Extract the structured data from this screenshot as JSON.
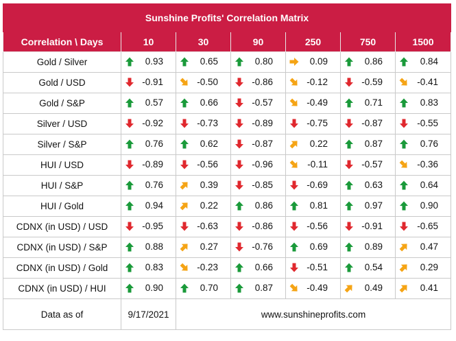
{
  "title": "Sunshine Profits' Correlation Matrix",
  "header_label": "Correlation \\ Days",
  "days": [
    "10",
    "30",
    "90",
    "250",
    "750",
    "1500"
  ],
  "colors": {
    "up": "#1a9a3a",
    "down": "#e0282e",
    "sideways": "#f5a415",
    "header_bg": "#cb1d44"
  },
  "rows": [
    {
      "label": "Gold / Silver",
      "cells": [
        {
          "v": "0.93",
          "d": "up"
        },
        {
          "v": "0.65",
          "d": "up"
        },
        {
          "v": "0.80",
          "d": "up"
        },
        {
          "v": "0.09",
          "d": "right"
        },
        {
          "v": "0.86",
          "d": "up"
        },
        {
          "v": "0.84",
          "d": "up"
        }
      ]
    },
    {
      "label": "Gold / USD",
      "cells": [
        {
          "v": "-0.91",
          "d": "down"
        },
        {
          "v": "-0.50",
          "d": "downright"
        },
        {
          "v": "-0.86",
          "d": "down"
        },
        {
          "v": "-0.12",
          "d": "downright"
        },
        {
          "v": "-0.59",
          "d": "down"
        },
        {
          "v": "-0.41",
          "d": "downright"
        }
      ]
    },
    {
      "label": "Gold / S&P",
      "cells": [
        {
          "v": "0.57",
          "d": "up"
        },
        {
          "v": "0.66",
          "d": "up"
        },
        {
          "v": "-0.57",
          "d": "down"
        },
        {
          "v": "-0.49",
          "d": "downright"
        },
        {
          "v": "0.71",
          "d": "up"
        },
        {
          "v": "0.83",
          "d": "up"
        }
      ]
    },
    {
      "label": "Silver / USD",
      "cells": [
        {
          "v": "-0.92",
          "d": "down"
        },
        {
          "v": "-0.73",
          "d": "down"
        },
        {
          "v": "-0.89",
          "d": "down"
        },
        {
          "v": "-0.75",
          "d": "down"
        },
        {
          "v": "-0.87",
          "d": "down"
        },
        {
          "v": "-0.55",
          "d": "down"
        }
      ]
    },
    {
      "label": "Silver / S&P",
      "cells": [
        {
          "v": "0.76",
          "d": "up"
        },
        {
          "v": "0.62",
          "d": "up"
        },
        {
          "v": "-0.87",
          "d": "down"
        },
        {
          "v": "0.22",
          "d": "upright"
        },
        {
          "v": "0.87",
          "d": "up"
        },
        {
          "v": "0.76",
          "d": "up"
        }
      ]
    },
    {
      "label": "HUI / USD",
      "cells": [
        {
          "v": "-0.89",
          "d": "down"
        },
        {
          "v": "-0.56",
          "d": "down"
        },
        {
          "v": "-0.96",
          "d": "down"
        },
        {
          "v": "-0.11",
          "d": "downright"
        },
        {
          "v": "-0.57",
          "d": "down"
        },
        {
          "v": "-0.36",
          "d": "downright"
        }
      ]
    },
    {
      "label": "HUI / S&P",
      "cells": [
        {
          "v": "0.76",
          "d": "up"
        },
        {
          "v": "0.39",
          "d": "upright"
        },
        {
          "v": "-0.85",
          "d": "down"
        },
        {
          "v": "-0.69",
          "d": "down"
        },
        {
          "v": "0.63",
          "d": "up"
        },
        {
          "v": "0.64",
          "d": "up"
        }
      ]
    },
    {
      "label": "HUI / Gold",
      "cells": [
        {
          "v": "0.94",
          "d": "up"
        },
        {
          "v": "0.22",
          "d": "upright"
        },
        {
          "v": "0.86",
          "d": "up"
        },
        {
          "v": "0.81",
          "d": "up"
        },
        {
          "v": "0.97",
          "d": "up"
        },
        {
          "v": "0.90",
          "d": "up"
        }
      ]
    },
    {
      "label": "CDNX (in USD) / USD",
      "cells": [
        {
          "v": "-0.95",
          "d": "down"
        },
        {
          "v": "-0.63",
          "d": "down"
        },
        {
          "v": "-0.86",
          "d": "down"
        },
        {
          "v": "-0.56",
          "d": "down"
        },
        {
          "v": "-0.91",
          "d": "down"
        },
        {
          "v": "-0.65",
          "d": "down"
        }
      ]
    },
    {
      "label": "CDNX (in USD) / S&P",
      "cells": [
        {
          "v": "0.88",
          "d": "up"
        },
        {
          "v": "0.27",
          "d": "upright"
        },
        {
          "v": "-0.76",
          "d": "down"
        },
        {
          "v": "0.69",
          "d": "up"
        },
        {
          "v": "0.89",
          "d": "up"
        },
        {
          "v": "0.47",
          "d": "upright"
        }
      ]
    },
    {
      "label": "CDNX (in USD) / Gold",
      "cells": [
        {
          "v": "0.83",
          "d": "up"
        },
        {
          "v": "-0.23",
          "d": "downright"
        },
        {
          "v": "0.66",
          "d": "up"
        },
        {
          "v": "-0.51",
          "d": "down"
        },
        {
          "v": "0.54",
          "d": "up"
        },
        {
          "v": "0.29",
          "d": "upright"
        }
      ]
    },
    {
      "label": "CDNX (in USD) / HUI",
      "cells": [
        {
          "v": "0.90",
          "d": "up"
        },
        {
          "v": "0.70",
          "d": "up"
        },
        {
          "v": "0.87",
          "d": "up"
        },
        {
          "v": "-0.49",
          "d": "downright"
        },
        {
          "v": "0.49",
          "d": "upright"
        },
        {
          "v": "0.41",
          "d": "upright"
        }
      ]
    }
  ],
  "footer": {
    "label": "Data as of",
    "date": "9/17/2021",
    "site": "www.sunshineprofits.com"
  }
}
